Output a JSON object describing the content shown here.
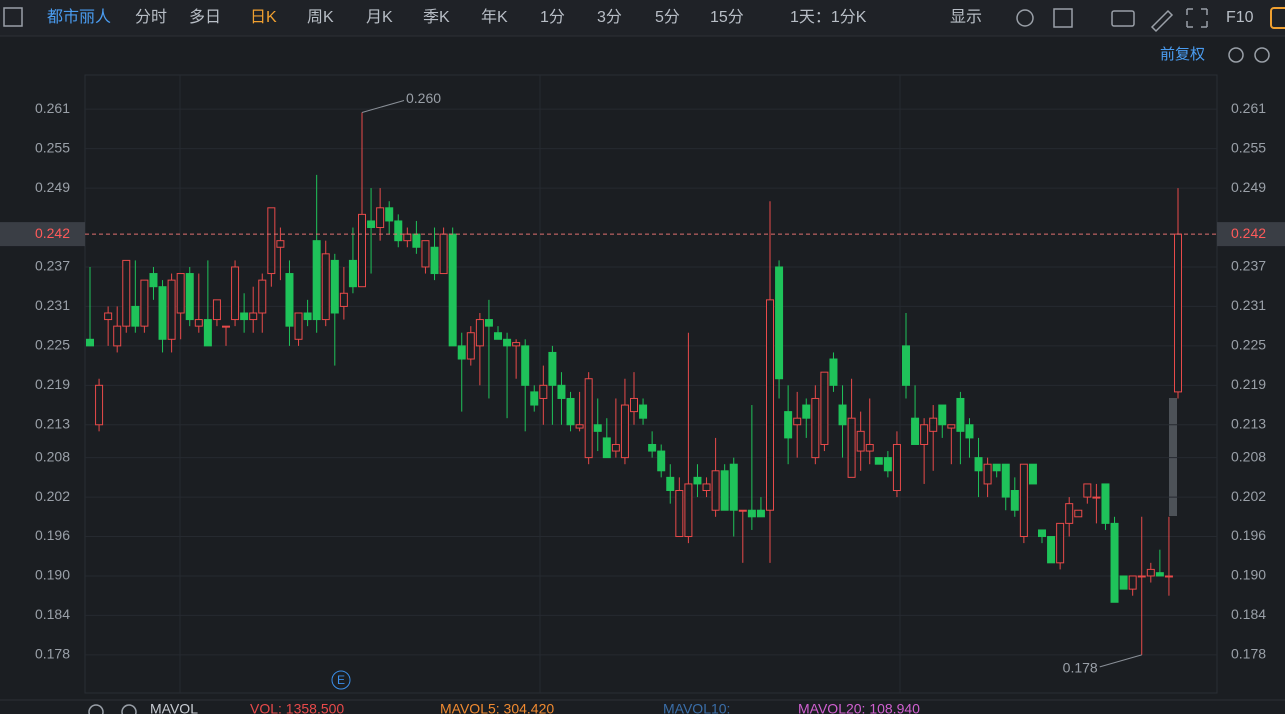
{
  "toolbar": {
    "stock": "都市丽人",
    "items": [
      "分时",
      "多日",
      "日K",
      "周K",
      "月K",
      "季K",
      "年K",
      "1分",
      "3分",
      "5分",
      "15分"
    ],
    "active": 2,
    "interval": "1天：1分K",
    "display": "显示",
    "f10": "F10"
  },
  "adjust": "前复权",
  "indicator": {
    "name": "MAVOL",
    "vol": "VOL: 1358.500",
    "mavol5": "MAVOL5: 304.420",
    "mavol10": "MAVOL10:",
    "mavol20": "MAVOL20: 108.940"
  },
  "chart_data": {
    "type": "candlestick",
    "up_color": "#e84a4a",
    "down_color": "#1fc35a",
    "ylim": [
      0.1722,
      0.2662
    ],
    "yticks": [
      0.261,
      0.255,
      0.249,
      0.237,
      0.231,
      0.225,
      0.219,
      0.213,
      0.208,
      0.202,
      0.196,
      {
        "value": 0.19,
        "label": "0.190"
      },
      0.184,
      0.178
    ],
    "grid": true,
    "last_price": 0.242,
    "high_note": {
      "value": 0.26,
      "label": "0.260"
    },
    "low_note": 0.178,
    "open": [
      0.226,
      0.213,
      0.229,
      0.225,
      0.228,
      0.231,
      0.228,
      0.236,
      0.234,
      0.226,
      0.23,
      0.236,
      0.228,
      0.229,
      0.229,
      0.228,
      0.229,
      0.23,
      0.229,
      0.23,
      0.236,
      0.24,
      0.236,
      0.226,
      0.23,
      0.241,
      0.229,
      0.238,
      0.231,
      0.238,
      0.234,
      0.244,
      0.243,
      0.246,
      0.244,
      0.241,
      0.242,
      0.237,
      0.24,
      0.236,
      0.242,
      0.225,
      0.223,
      0.225,
      0.229,
      0.227,
      0.226,
      0.225,
      0.225,
      0.218,
      0.217,
      0.224,
      0.219,
      0.217,
      0.2125,
      0.208,
      0.213,
      0.211,
      0.209,
      0.208,
      0.215,
      0.216,
      0.21,
      0.209,
      0.205,
      0.196,
      0.196,
      0.205,
      0.203,
      0.2,
      0.206,
      0.207,
      0.2,
      0.2,
      0.2,
      0.2,
      0.237,
      0.215,
      0.213,
      0.216,
      0.208,
      0.21,
      0.223,
      0.216,
      0.205,
      0.209,
      0.209,
      0.208,
      0.208,
      0.203,
      0.225,
      0.214,
      0.21,
      0.212,
      0.216,
      0.2125,
      0.217,
      0.213,
      0.208,
      0.204,
      0.207,
      0.207,
      0.203,
      0.196,
      0.207,
      0.197,
      0.196,
      0.192,
      0.198,
      0.199,
      0.202,
      0.202,
      0.204,
      0.198,
      0.19,
      0.188,
      0.19,
      0.19,
      0.1905,
      0.19,
      0.218
    ],
    "high": [
      0.237,
      0.22,
      0.231,
      0.231,
      0.238,
      0.238,
      0.235,
      0.237,
      0.235,
      0.236,
      0.236,
      0.237,
      0.236,
      0.238,
      0.232,
      0.228,
      0.238,
      0.233,
      0.234,
      0.236,
      0.246,
      0.243,
      0.238,
      0.23,
      0.232,
      0.251,
      0.241,
      0.239,
      0.237,
      0.243,
      0.2605,
      0.249,
      0.249,
      0.247,
      0.245,
      0.243,
      0.244,
      0.241,
      0.243,
      0.243,
      0.243,
      0.227,
      0.228,
      0.23,
      0.232,
      0.228,
      0.227,
      0.226,
      0.226,
      0.219,
      0.222,
      0.225,
      0.221,
      0.218,
      0.218,
      0.221,
      0.217,
      0.214,
      0.217,
      0.22,
      0.221,
      0.217,
      0.212,
      0.21,
      0.207,
      0.205,
      0.227,
      0.207,
      0.205,
      0.211,
      0.207,
      0.208,
      0.2,
      0.216,
      0.202,
      0.247,
      0.238,
      0.219,
      0.218,
      0.217,
      0.219,
      0.221,
      0.224,
      0.219,
      0.22,
      0.215,
      0.217,
      0.208,
      0.209,
      0.212,
      0.23,
      0.219,
      0.214,
      0.216,
      0.216,
      0.213,
      0.218,
      0.214,
      0.211,
      0.208,
      0.207,
      0.207,
      0.205,
      0.207,
      0.207,
      0.197,
      0.196,
      0.198,
      0.202,
      0.2,
      0.204,
      0.204,
      0.204,
      0.199,
      0.19,
      0.19,
      0.199,
      0.192,
      0.194,
      0.199,
      0.249
    ],
    "low": [
      0.225,
      0.212,
      0.225,
      0.224,
      0.227,
      0.227,
      0.227,
      0.232,
      0.224,
      0.224,
      0.226,
      0.228,
      0.227,
      0.225,
      0.228,
      0.225,
      0.228,
      0.227,
      0.227,
      0.227,
      0.234,
      0.235,
      0.225,
      0.225,
      0.228,
      0.227,
      0.228,
      0.222,
      0.229,
      0.233,
      0.234,
      0.236,
      0.241,
      0.242,
      0.24,
      0.24,
      0.239,
      0.236,
      0.235,
      0.236,
      0.225,
      0.215,
      0.222,
      0.219,
      0.217,
      0.226,
      0.214,
      0.22,
      0.212,
      0.215,
      0.213,
      0.213,
      0.213,
      0.212,
      0.212,
      0.207,
      0.209,
      0.208,
      0.208,
      0.207,
      0.213,
      0.213,
      0.208,
      0.205,
      0.201,
      0.196,
      0.195,
      0.202,
      0.202,
      0.199,
      0.2,
      0.196,
      0.192,
      0.197,
      0.199,
      0.192,
      0.217,
      0.207,
      0.208,
      0.211,
      0.207,
      0.209,
      0.218,
      0.208,
      0.205,
      0.206,
      0.207,
      0.207,
      0.205,
      0.202,
      0.217,
      0.21,
      0.204,
      0.206,
      0.211,
      0.207,
      0.207,
      0.208,
      0.202,
      0.202,
      0.205,
      0.2,
      0.199,
      0.195,
      0.204,
      0.195,
      0.192,
      0.191,
      0.196,
      0.199,
      0.201,
      0.198,
      0.197,
      0.186,
      0.188,
      0.187,
      0.178,
      0.189,
      0.19,
      0.187,
      0.217
    ],
    "close": [
      0.225,
      0.219,
      0.23,
      0.228,
      0.238,
      0.228,
      0.235,
      0.234,
      0.226,
      0.235,
      0.236,
      0.229,
      0.229,
      0.225,
      0.232,
      0.228,
      0.237,
      0.229,
      0.23,
      0.235,
      0.246,
      0.241,
      0.228,
      0.23,
      0.229,
      0.229,
      0.239,
      0.23,
      0.233,
      0.234,
      0.245,
      0.243,
      0.246,
      0.244,
      0.241,
      0.242,
      0.24,
      0.241,
      0.236,
      0.242,
      0.225,
      0.223,
      0.227,
      0.229,
      0.228,
      0.226,
      0.225,
      0.2255,
      0.219,
      0.216,
      0.219,
      0.219,
      0.217,
      0.213,
      0.213,
      0.22,
      0.212,
      0.208,
      0.21,
      0.216,
      0.217,
      0.214,
      0.209,
      0.206,
      0.203,
      0.203,
      0.204,
      0.204,
      0.204,
      0.206,
      0.2,
      0.2,
      0.2,
      0.199,
      0.199,
      0.232,
      0.22,
      0.211,
      0.214,
      0.214,
      0.217,
      0.221,
      0.219,
      0.213,
      0.214,
      0.212,
      0.21,
      0.207,
      0.206,
      0.21,
      0.219,
      0.21,
      0.213,
      0.214,
      0.213,
      0.213,
      0.212,
      0.211,
      0.206,
      0.207,
      0.206,
      0.202,
      0.2,
      0.207,
      0.204,
      0.196,
      0.192,
      0.198,
      0.201,
      0.2,
      0.204,
      0.202,
      0.198,
      0.186,
      0.188,
      0.19,
      0.19,
      0.191,
      0.19,
      0.19,
      0.242
    ]
  }
}
